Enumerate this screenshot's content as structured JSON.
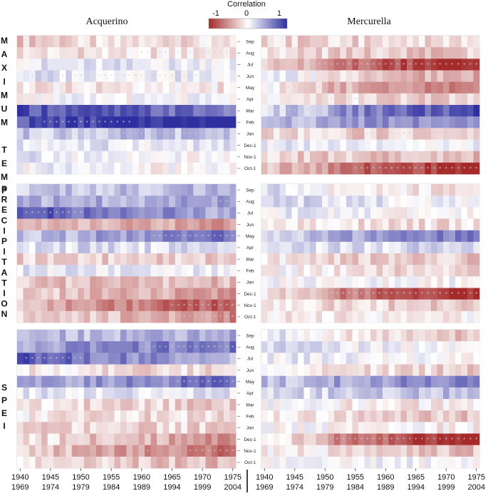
{
  "chart_data": {
    "type": "heatmap",
    "colorbar": {
      "title": "Correlation",
      "min": -1,
      "max": 1,
      "ticks": [
        "-1",
        "0",
        "1"
      ],
      "low_color": "#a52a2a",
      "mid_color": "#ffffff",
      "high_color": "#2f2fa0"
    },
    "sites": [
      "Acquerino",
      "Mercurella"
    ],
    "variables": [
      {
        "id": "tmax",
        "letters": [
          "M",
          "A",
          "X",
          "I",
          "M",
          "U",
          "M",
          "",
          "T",
          "E",
          "M",
          "P"
        ]
      },
      {
        "id": "prec",
        "letters": [
          "P",
          "R",
          "E",
          "C",
          "I",
          "P",
          "I",
          "T",
          "A",
          "T",
          "I",
          "O",
          "N"
        ]
      },
      {
        "id": "spei",
        "letters": [
          "S",
          "P",
          "E",
          "I"
        ]
      }
    ],
    "months": [
      "Sep",
      "Aug",
      "Jul",
      "Jun",
      "May",
      "Apr",
      "Mar",
      "Feb",
      "Jan",
      "Dec-1",
      "Nov-1",
      "Oct-1"
    ],
    "window_count": 36,
    "window_start_years": [
      1940,
      1941,
      1942,
      1943,
      1944,
      1945,
      1946,
      1947,
      1948,
      1949,
      1950,
      1951,
      1952,
      1953,
      1954,
      1955,
      1956,
      1957,
      1958,
      1959,
      1960,
      1961,
      1962,
      1963,
      1964,
      1965,
      1966,
      1967,
      1968,
      1969,
      1970,
      1971,
      1972,
      1973,
      1974,
      1975
    ],
    "x_axis": {
      "top": [
        "1940",
        "1945",
        "1950",
        "1955",
        "1960",
        "1965",
        "1970",
        "1975"
      ],
      "bottom": [
        "1969",
        "1974",
        "1979",
        "1984",
        "1989",
        "1994",
        "1999",
        "2004"
      ]
    },
    "significance_marker": "*",
    "panels": [
      {
        "site": "Acquerino",
        "variable": "tmax",
        "base": [
          -0.25,
          -0.15,
          0.1,
          0.15,
          -0.1,
          0.0,
          0.85,
          0.8,
          0.25,
          0.1,
          0.1,
          0.05
        ],
        "trend": [
          0.15,
          0.05,
          0.0,
          -0.1,
          0.0,
          0.0,
          -0.2,
          0.35,
          0.05,
          0.0,
          -0.15,
          -0.1
        ],
        "sig": [
          [
            1,
            20,
            35
          ],
          [
            3,
            2,
            30
          ],
          [
            7,
            4,
            18
          ],
          [
            8,
            8,
            35
          ]
        ]
      },
      {
        "site": "Mercurella",
        "variable": "tmax",
        "base": [
          -0.2,
          -0.2,
          -0.15,
          0.1,
          -0.05,
          -0.1,
          0.2,
          0.3,
          -0.15,
          0.1,
          -0.2,
          -0.3
        ],
        "trend": [
          0.0,
          -0.05,
          -0.75,
          -0.45,
          -0.5,
          -0.1,
          0.55,
          0.25,
          -0.1,
          -0.05,
          -0.1,
          -0.6
        ],
        "sig": [
          [
            2,
            8,
            35
          ],
          [
            4,
            4,
            9
          ],
          [
            5,
            9,
            16
          ],
          [
            6,
            2,
            8
          ],
          [
            8,
            15,
            35
          ],
          [
            11,
            15,
            35
          ]
        ]
      },
      {
        "site": "Acquerino",
        "variable": "prec",
        "base": [
          0.25,
          0.35,
          0.8,
          -0.25,
          0.3,
          0.15,
          -0.2,
          0.1,
          -0.3,
          -0.2,
          -0.3,
          -0.15
        ],
        "trend": [
          0.1,
          0.1,
          -0.4,
          -0.2,
          0.35,
          0.05,
          -0.05,
          0.0,
          0.0,
          -0.3,
          -0.55,
          -0.4
        ],
        "sig": [
          [
            1,
            18,
            18
          ],
          [
            1,
            32,
            34
          ],
          [
            2,
            1,
            10
          ],
          [
            3,
            29,
            29
          ],
          [
            4,
            22,
            35
          ],
          [
            9,
            1,
            1
          ],
          [
            10,
            25,
            35
          ],
          [
            11,
            1,
            1
          ],
          [
            11,
            26,
            35
          ]
        ]
      },
      {
        "site": "Mercurella",
        "variable": "prec",
        "base": [
          0.15,
          0.25,
          0.1,
          -0.1,
          0.2,
          0.1,
          -0.1,
          0.0,
          0.05,
          -0.1,
          -0.05,
          -0.1
        ],
        "trend": [
          -0.25,
          -0.2,
          -0.1,
          -0.05,
          0.35,
          0.1,
          -0.15,
          -0.2,
          -0.05,
          -0.75,
          -0.2,
          0.05
        ],
        "sig": [
          [
            1,
            8,
            8
          ],
          [
            1,
            35,
            35
          ],
          [
            4,
            3,
            6
          ],
          [
            9,
            11,
            35
          ]
        ]
      },
      {
        "site": "Acquerino",
        "variable": "spei",
        "base": [
          0.3,
          0.45,
          0.8,
          -0.1,
          0.4,
          0.1,
          -0.15,
          -0.1,
          -0.2,
          -0.15,
          -0.2,
          -0.15
        ],
        "trend": [
          0.1,
          0.2,
          -0.45,
          -0.1,
          0.3,
          0.0,
          -0.1,
          -0.1,
          0.0,
          -0.35,
          -0.5,
          -0.2
        ],
        "sig": [
          [
            1,
            20,
            35
          ],
          [
            2,
            1,
            10
          ],
          [
            4,
            26,
            35
          ],
          [
            8,
            1,
            1
          ],
          [
            9,
            1,
            1
          ],
          [
            10,
            21,
            21
          ],
          [
            10,
            28,
            35
          ]
        ]
      },
      {
        "site": "Mercurella",
        "variable": "spei",
        "base": [
          0.1,
          0.2,
          0.1,
          -0.1,
          0.3,
          0.15,
          0.0,
          -0.05,
          0.0,
          -0.1,
          -0.05,
          0.0
        ],
        "trend": [
          -0.3,
          -0.2,
          -0.1,
          -0.1,
          0.25,
          0.15,
          -0.1,
          -0.2,
          -0.05,
          -0.8,
          -0.2,
          0.05
        ],
        "sig": [
          [
            4,
            3,
            5
          ],
          [
            9,
            10,
            35
          ]
        ]
      }
    ]
  }
}
